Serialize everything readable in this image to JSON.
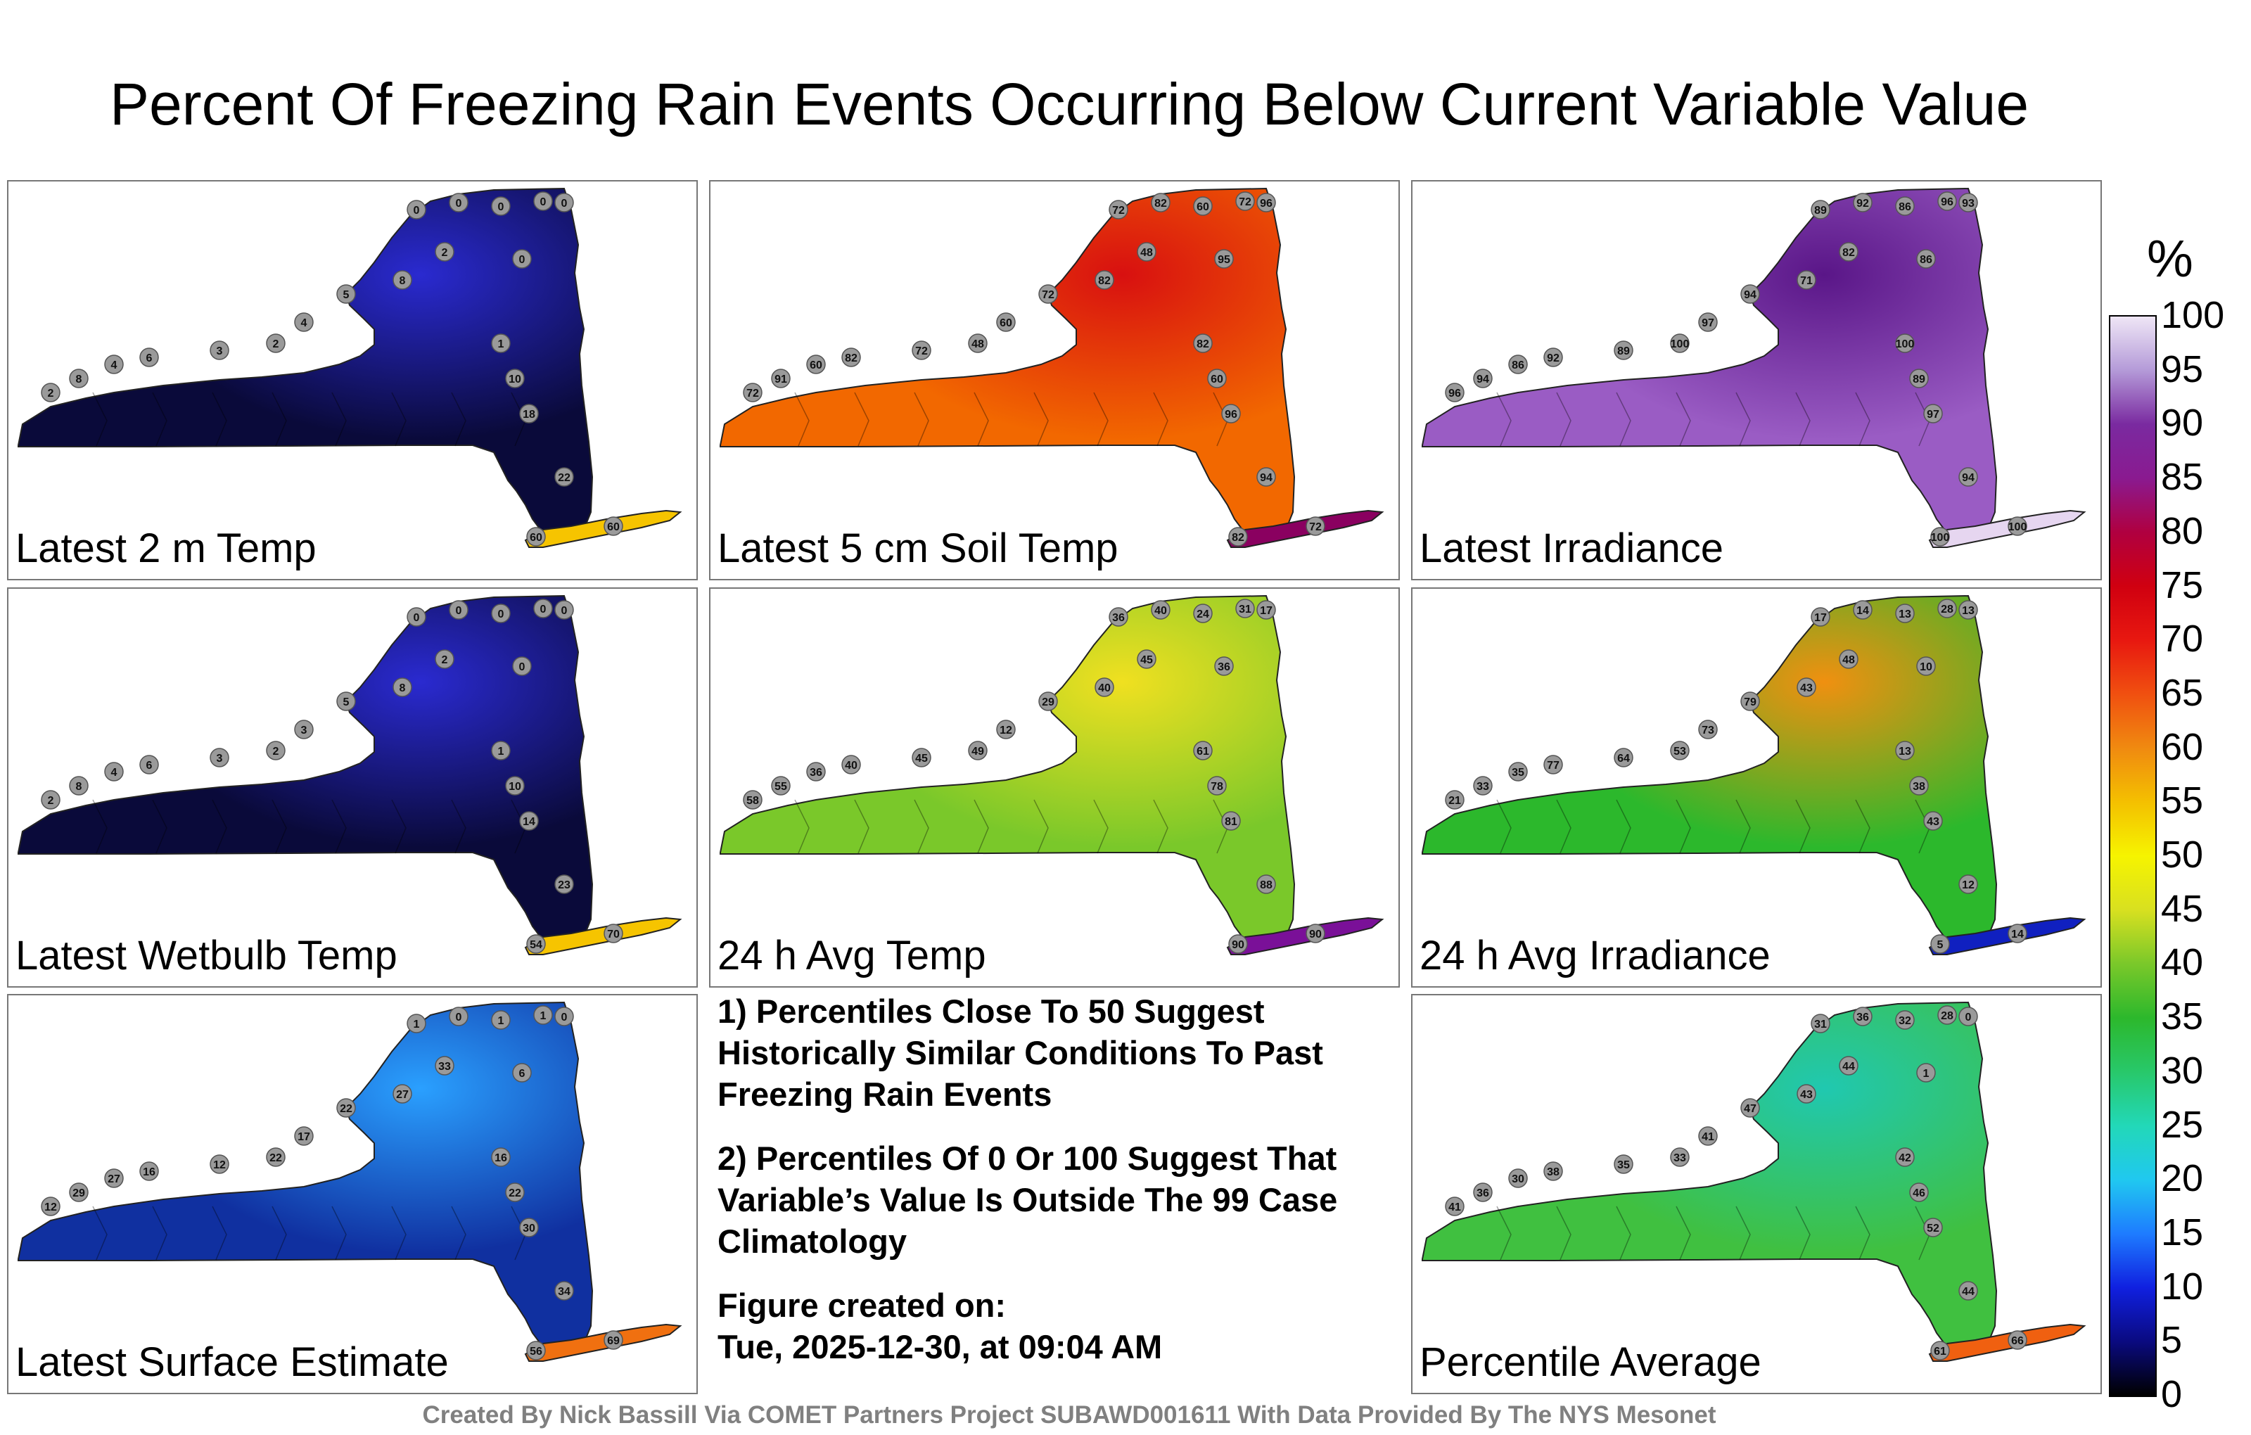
{
  "title": "Percent Of Freezing Rain Events Occurring Below Current Variable Value",
  "panels": [
    {
      "id": "p1",
      "label": "Latest 2 m Temp",
      "base": "#0a0a3a",
      "hot": "#2a2ad0",
      "accent": "#f6c400",
      "dots": [
        "0",
        "0",
        "0",
        "0",
        "0",
        "0",
        "2",
        "8",
        "5",
        "4",
        "2",
        "3",
        "6",
        "4",
        "8",
        "2",
        "1",
        "10",
        "18",
        "22",
        "60",
        "60"
      ]
    },
    {
      "id": "p2",
      "label": "Latest 5 cm Soil Temp",
      "base": "#f26800",
      "hot": "#d81010",
      "accent": "#8a0060",
      "dots": [
        "72",
        "82",
        "60",
        "72",
        "96",
        "95",
        "48",
        "82",
        "72",
        "60",
        "48",
        "72",
        "82",
        "60",
        "91",
        "72",
        "82",
        "60",
        "96",
        "94",
        "82",
        "72"
      ]
    },
    {
      "id": "p3",
      "label": "Latest Irradiance",
      "base": "#9a5cc4",
      "hot": "#5a1688",
      "accent": "#e6d6f0",
      "dots": [
        "89",
        "92",
        "86",
        "96",
        "93",
        "86",
        "82",
        "71",
        "94",
        "97",
        "100",
        "89",
        "92",
        "86",
        "94",
        "96",
        "100",
        "89",
        "97",
        "94",
        "100",
        "100"
      ]
    },
    {
      "id": "p4",
      "label": "Latest Wetbulb Temp",
      "base": "#0a0a3a",
      "hot": "#2a2ad0",
      "accent": "#f6c400",
      "dots": [
        "0",
        "0",
        "0",
        "0",
        "0",
        "0",
        "2",
        "8",
        "5",
        "3",
        "2",
        "3",
        "6",
        "4",
        "8",
        "2",
        "1",
        "10",
        "14",
        "23",
        "54",
        "70"
      ]
    },
    {
      "id": "p5",
      "label": "24 h Avg Temp",
      "base": "#7ac82a",
      "hot": "#f0e020",
      "accent": "#7a1098",
      "dots": [
        "36",
        "40",
        "24",
        "31",
        "17",
        "36",
        "45",
        "40",
        "29",
        "12",
        "49",
        "45",
        "40",
        "36",
        "55",
        "58",
        "61",
        "78",
        "81",
        "88",
        "90",
        "90"
      ]
    },
    {
      "id": "p6",
      "label": "24 h Avg Irradiance",
      "base": "#2cb82c",
      "hot": "#f09010",
      "accent": "#1020c0",
      "dots": [
        "17",
        "14",
        "13",
        "28",
        "13",
        "10",
        "48",
        "43",
        "79",
        "73",
        "53",
        "64",
        "77",
        "35",
        "33",
        "21",
        "13",
        "38",
        "43",
        "12",
        "5",
        "14"
      ]
    },
    {
      "id": "p7",
      "label": "Latest Surface Estimate",
      "base": "#1030a0",
      "hot": "#2aa0ff",
      "accent": "#f07010",
      "dots": [
        "1",
        "0",
        "1",
        "1",
        "0",
        "6",
        "33",
        "27",
        "22",
        "17",
        "22",
        "12",
        "16",
        "27",
        "29",
        "12",
        "16",
        "22",
        "30",
        "34",
        "56",
        "69"
      ]
    },
    {
      "id": "p8",
      "label": "Percentile Average",
      "base": "#40c040",
      "hot": "#20c8b0",
      "accent": "#f06010",
      "dots": [
        "31",
        "36",
        "32",
        "28",
        "0",
        "1",
        "44",
        "43",
        "47",
        "41",
        "33",
        "35",
        "38",
        "30",
        "36",
        "41",
        "42",
        "46",
        "52",
        "44",
        "61",
        "66"
      ]
    }
  ],
  "notes": {
    "note1": "1) Percentiles Close To 50 Suggest Historically Similar Conditions To Past Freezing Rain Events",
    "note2": "2) Percentiles Of 0 Or 100 Suggest That Variable’s Value Is Outside The 99 Case Climatology",
    "created_label": "Figure created on:",
    "created_value": "Tue, 2025-12-30, at 09:04 AM"
  },
  "colorbar": {
    "unit": "%",
    "ticks": [
      "0",
      "5",
      "10",
      "15",
      "20",
      "25",
      "30",
      "35",
      "40",
      "45",
      "50",
      "55",
      "60",
      "65",
      "70",
      "75",
      "80",
      "85",
      "90",
      "95",
      "100"
    ],
    "stops": [
      "#000000",
      "#0a0a80",
      "#1020e0",
      "#1e7cff",
      "#20c8f0",
      "#22d8b8",
      "#28c86a",
      "#2cb82c",
      "#7ac82a",
      "#d8e020",
      "#f6f400",
      "#f4c000",
      "#f08a10",
      "#f05010",
      "#e81810",
      "#d00010",
      "#b00040",
      "#8a1a90",
      "#7a2aa0",
      "#b49ad8",
      "#efe6f6"
    ]
  },
  "credit": "Created By Nick Bassill Via COMET Partners Project SUBAWD001611 With Data Provided By The NYS Mesonet"
}
